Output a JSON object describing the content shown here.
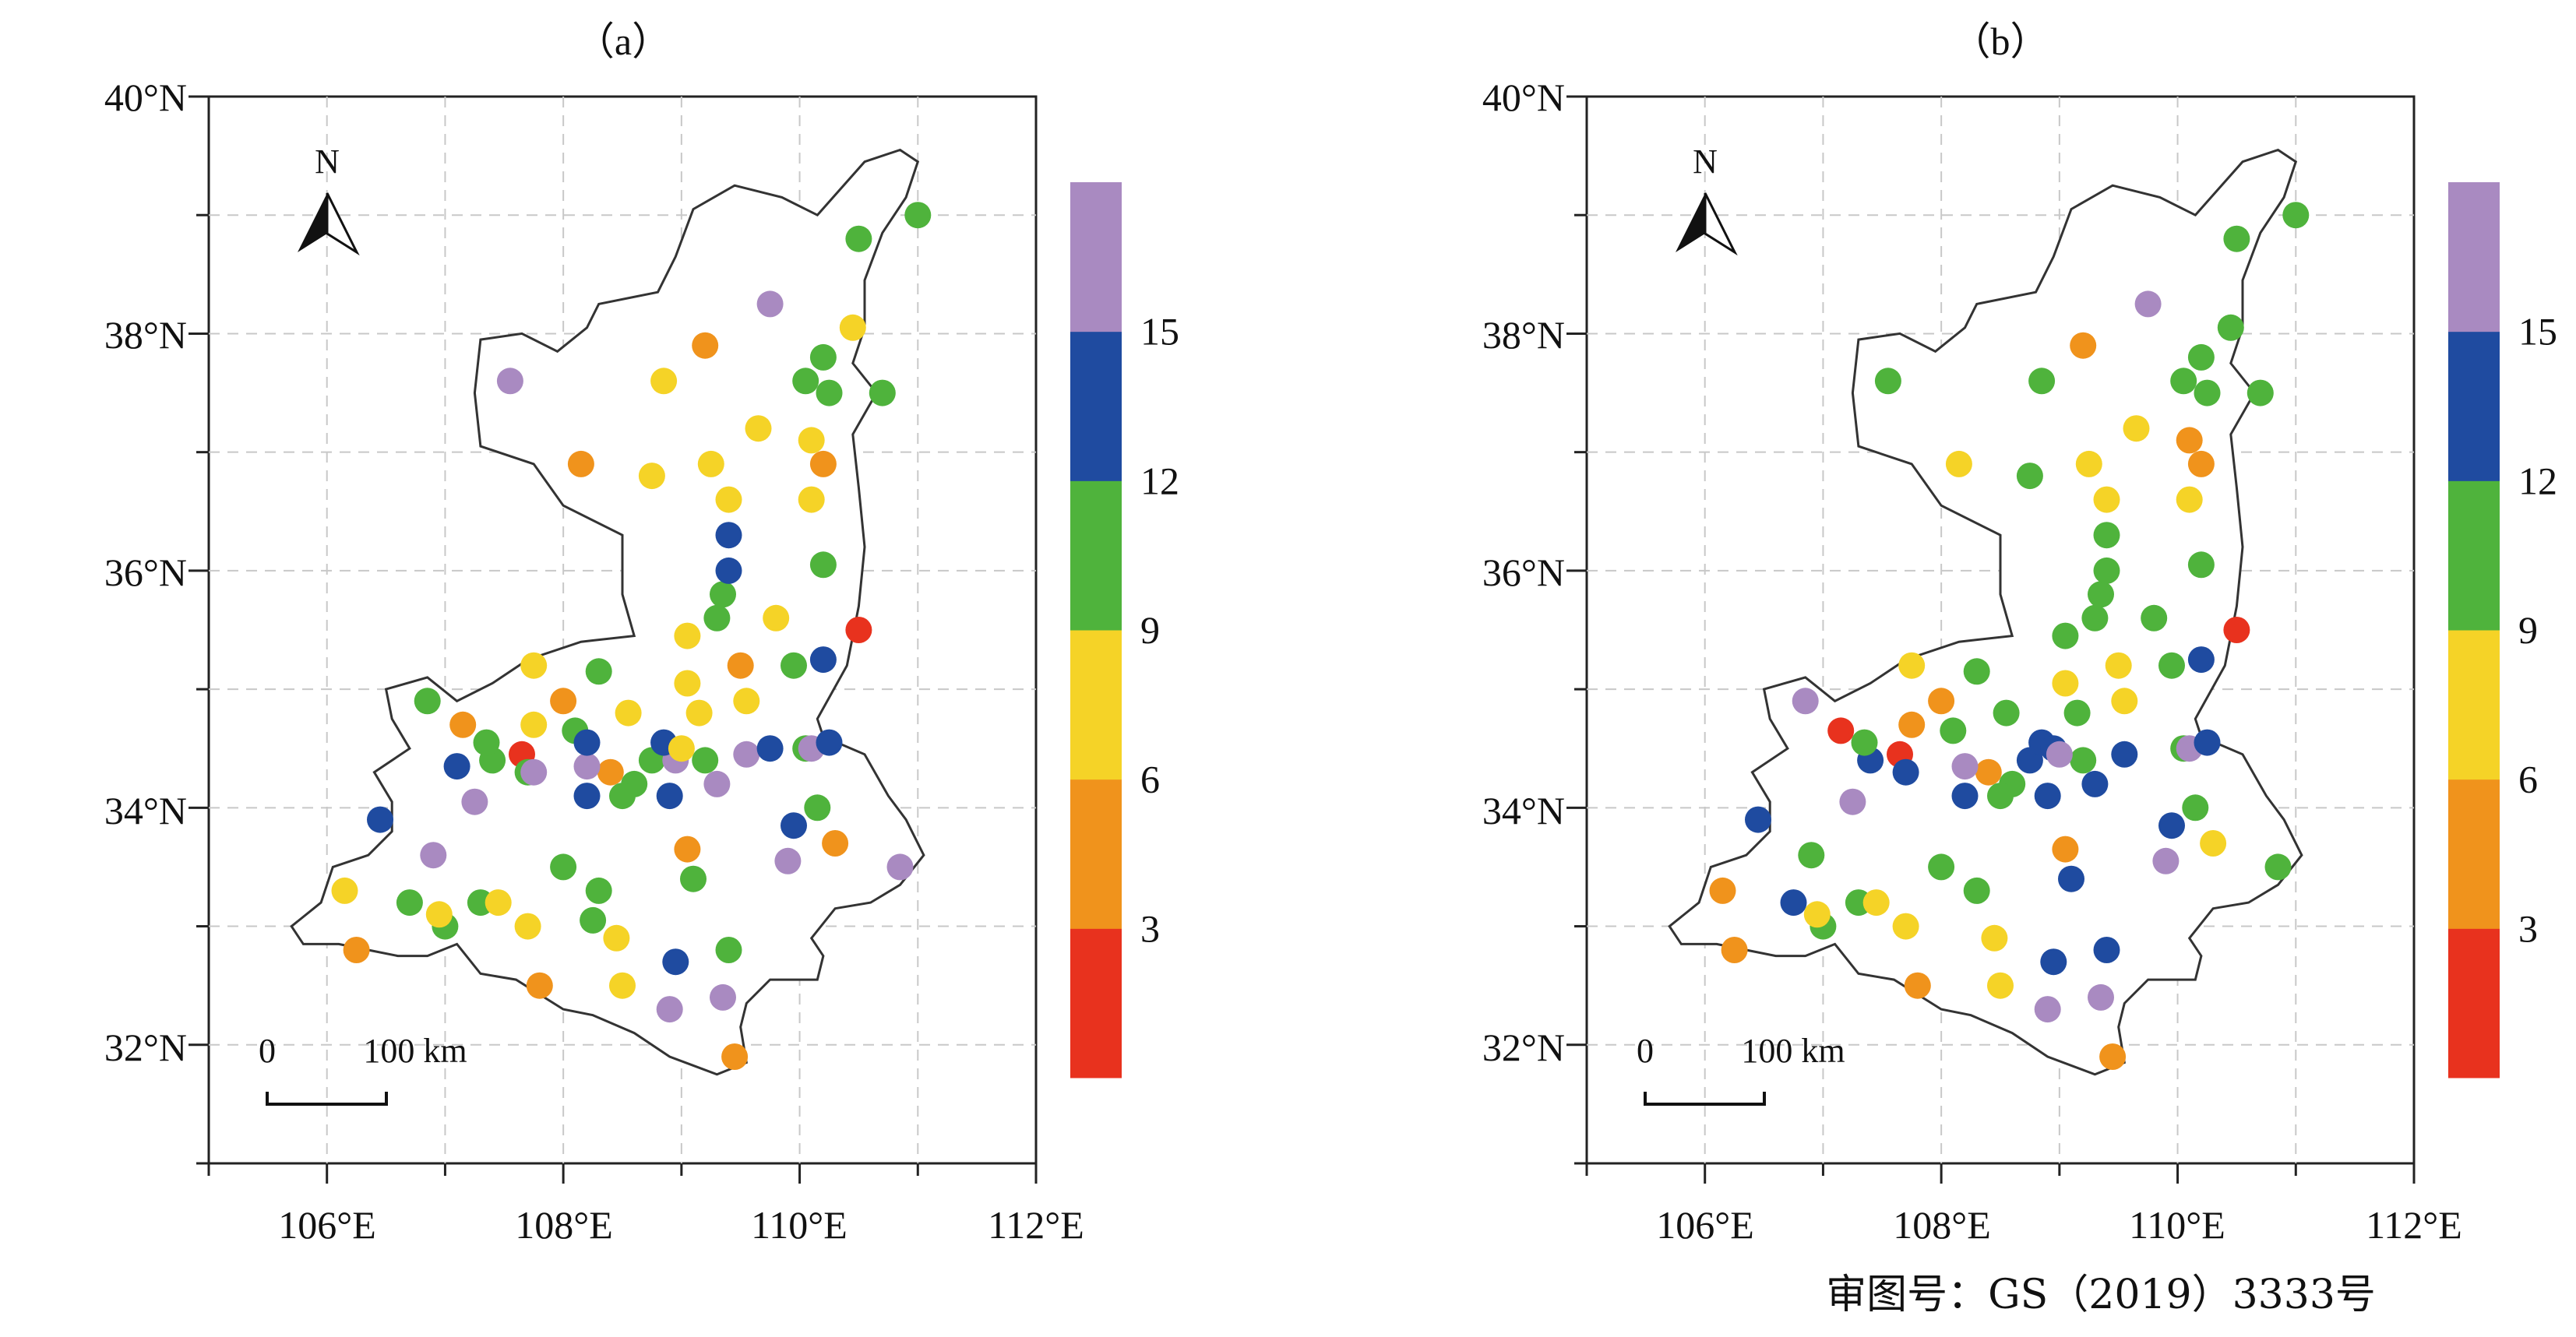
{
  "approval_number": "审图号：GS（2019）3333号",
  "north_label": "N",
  "scale_bar": {
    "zero": "0",
    "distance": "100 km"
  },
  "lat_labels": [
    "32°N",
    "34°N",
    "36°N",
    "38°N",
    "40°N"
  ],
  "lon_labels": [
    "106°E",
    "108°E",
    "110°E",
    "112°E"
  ],
  "legend": {
    "tick_labels": [
      "3",
      "6",
      "9",
      "12",
      "15"
    ],
    "colors": [
      "#e8321e",
      "#f0931c",
      "#f5d327",
      "#4fb33c",
      "#1f4ba0",
      "#a98ac1"
    ]
  },
  "map_extent": {
    "lon": [
      105,
      112
    ],
    "lat": [
      31,
      40
    ]
  },
  "panels": [
    {
      "label": "（a）",
      "stations": [
        [
          108.0,
          34.9,
          1
        ],
        [
          108.4,
          34.3,
          1
        ],
        [
          110.5,
          35.5,
          0
        ],
        [
          107.65,
          34.45,
          0
        ],
        [
          106.7,
          33.2,
          3
        ],
        [
          107.0,
          33.0,
          3
        ],
        [
          107.3,
          33.2,
          3
        ],
        [
          108.0,
          33.5,
          3
        ],
        [
          108.3,
          33.3,
          3
        ],
        [
          108.25,
          33.05,
          3
        ],
        [
          109.1,
          33.4,
          3
        ],
        [
          109.4,
          32.8,
          3
        ],
        [
          108.6,
          34.2,
          3
        ],
        [
          108.75,
          34.4,
          3
        ],
        [
          109.2,
          34.4,
          3
        ],
        [
          109.3,
          35.6,
          3
        ],
        [
          109.35,
          35.8,
          3
        ],
        [
          110.2,
          36.05,
          3
        ],
        [
          109.95,
          35.2,
          3
        ],
        [
          110.05,
          34.5,
          3
        ],
        [
          110.15,
          34.0,
          3
        ],
        [
          110.2,
          37.8,
          3
        ],
        [
          110.05,
          37.6,
          3
        ],
        [
          110.25,
          37.5,
          3
        ],
        [
          110.5,
          38.8,
          3
        ],
        [
          111.0,
          39.0,
          3
        ],
        [
          110.7,
          37.5,
          3
        ],
        [
          107.4,
          34.4,
          3
        ],
        [
          107.35,
          34.55,
          3
        ],
        [
          108.1,
          34.65,
          3
        ],
        [
          106.85,
          34.9,
          3
        ],
        [
          108.3,
          35.15,
          3
        ],
        [
          107.7,
          34.3,
          3
        ],
        [
          108.5,
          34.1,
          3
        ],
        [
          109.4,
          36.3,
          4
        ],
        [
          109.75,
          38.25,
          5
        ],
        [
          107.55,
          37.6,
          5
        ],
        [
          106.9,
          33.6,
          5
        ],
        [
          107.25,
          34.05,
          5
        ],
        [
          107.75,
          34.3,
          5
        ],
        [
          108.2,
          34.35,
          5
        ],
        [
          108.95,
          34.4,
          5
        ],
        [
          109.3,
          34.2,
          5
        ],
        [
          109.55,
          34.45,
          5
        ],
        [
          109.9,
          33.55,
          5
        ],
        [
          110.1,
          34.5,
          5
        ],
        [
          110.85,
          33.5,
          5
        ],
        [
          108.9,
          32.3,
          5
        ],
        [
          109.35,
          32.4,
          5
        ],
        [
          106.45,
          33.9,
          4
        ],
        [
          107.1,
          34.35,
          4
        ],
        [
          108.2,
          34.1,
          4
        ],
        [
          108.2,
          34.55,
          4
        ],
        [
          108.85,
          34.55,
          4
        ],
        [
          108.9,
          34.1,
          4
        ],
        [
          109.4,
          36.0,
          4
        ],
        [
          109.75,
          34.5,
          4
        ],
        [
          109.95,
          33.85,
          4
        ],
        [
          110.2,
          35.25,
          4
        ],
        [
          110.25,
          34.55,
          4
        ],
        [
          108.95,
          32.7,
          4
        ],
        [
          107.15,
          34.7,
          1
        ],
        [
          108.15,
          36.9,
          1
        ],
        [
          109.2,
          37.9,
          1
        ],
        [
          110.2,
          36.9,
          1
        ],
        [
          110.3,
          33.7,
          1
        ],
        [
          109.5,
          35.2,
          1
        ],
        [
          109.05,
          33.65,
          1
        ],
        [
          107.8,
          32.5,
          1
        ],
        [
          106.25,
          32.8,
          1
        ],
        [
          109.45,
          31.9,
          1
        ],
        [
          106.15,
          33.3,
          2
        ],
        [
          106.95,
          33.1,
          2
        ],
        [
          107.45,
          33.2,
          2
        ],
        [
          107.7,
          33.0,
          2
        ],
        [
          108.45,
          32.9,
          2
        ],
        [
          108.5,
          32.5,
          2
        ],
        [
          107.75,
          34.7,
          2
        ],
        [
          107.75,
          35.2,
          2
        ],
        [
          108.55,
          34.8,
          2
        ],
        [
          108.85,
          37.6,
          2
        ],
        [
          108.75,
          36.8,
          2
        ],
        [
          109.25,
          36.9,
          2
        ],
        [
          109.4,
          36.6,
          2
        ],
        [
          109.65,
          37.2,
          2
        ],
        [
          110.1,
          37.1,
          2
        ],
        [
          110.1,
          36.6,
          2
        ],
        [
          109.8,
          35.6,
          2
        ],
        [
          109.05,
          35.45,
          2
        ],
        [
          109.05,
          35.05,
          2
        ],
        [
          109.15,
          34.8,
          2
        ],
        [
          109.55,
          34.9,
          2
        ],
        [
          109.0,
          34.5,
          2
        ],
        [
          110.45,
          38.05,
          2
        ]
      ]
    },
    {
      "label": "（b）",
      "stations": [
        [
          108.0,
          34.9,
          1
        ],
        [
          108.4,
          34.3,
          1
        ],
        [
          110.5,
          35.5,
          0
        ],
        [
          107.65,
          34.45,
          0
        ],
        [
          107.15,
          34.65,
          0
        ],
        [
          106.75,
          33.2,
          4
        ],
        [
          107.0,
          33.0,
          3
        ],
        [
          107.3,
          33.2,
          3
        ],
        [
          108.0,
          33.5,
          3
        ],
        [
          108.3,
          33.3,
          3
        ],
        [
          109.1,
          33.4,
          4
        ],
        [
          109.4,
          32.8,
          4
        ],
        [
          108.6,
          34.2,
          3
        ],
        [
          108.75,
          34.4,
          4
        ],
        [
          109.2,
          34.4,
          3
        ],
        [
          109.3,
          35.6,
          3
        ],
        [
          109.35,
          35.8,
          3
        ],
        [
          110.2,
          36.05,
          3
        ],
        [
          109.95,
          35.2,
          3
        ],
        [
          110.05,
          34.5,
          3
        ],
        [
          110.15,
          34.0,
          3
        ],
        [
          110.2,
          37.8,
          3
        ],
        [
          110.05,
          37.6,
          3
        ],
        [
          110.25,
          37.5,
          3
        ],
        [
          110.5,
          38.8,
          3
        ],
        [
          111.0,
          39.0,
          3
        ],
        [
          110.7,
          37.5,
          3
        ],
        [
          107.4,
          34.4,
          4
        ],
        [
          107.35,
          34.55,
          3
        ],
        [
          108.1,
          34.65,
          3
        ],
        [
          106.85,
          34.9,
          5
        ],
        [
          108.3,
          35.15,
          3
        ],
        [
          107.7,
          34.3,
          4
        ],
        [
          108.5,
          34.1,
          3
        ],
        [
          109.4,
          36.3,
          3
        ],
        [
          109.75,
          38.25,
          5
        ],
        [
          107.55,
          37.6,
          3
        ],
        [
          106.9,
          33.6,
          3
        ],
        [
          107.25,
          34.05,
          5
        ],
        [
          109.3,
          34.2,
          4
        ],
        [
          109.55,
          34.45,
          4
        ],
        [
          109.9,
          33.55,
          5
        ],
        [
          110.1,
          34.5,
          5
        ],
        [
          110.85,
          33.5,
          3
        ],
        [
          108.9,
          32.3,
          5
        ],
        [
          109.35,
          32.4,
          5
        ],
        [
          106.45,
          33.9,
          4
        ],
        [
          108.2,
          34.1,
          4
        ],
        [
          108.2,
          34.35,
          5
        ],
        [
          108.85,
          34.55,
          4
        ],
        [
          108.9,
          34.1,
          4
        ],
        [
          109.4,
          36.0,
          3
        ],
        [
          109.95,
          33.85,
          4
        ],
        [
          110.2,
          35.25,
          4
        ],
        [
          110.25,
          34.55,
          4
        ],
        [
          108.95,
          32.7,
          4
        ],
        [
          108.15,
          36.9,
          2
        ],
        [
          109.2,
          37.9,
          1
        ],
        [
          110.2,
          36.9,
          1
        ],
        [
          110.1,
          37.1,
          1
        ],
        [
          110.3,
          33.7,
          2
        ],
        [
          109.5,
          35.2,
          2
        ],
        [
          109.05,
          33.65,
          1
        ],
        [
          107.8,
          32.5,
          1
        ],
        [
          106.25,
          32.8,
          1
        ],
        [
          109.45,
          31.9,
          1
        ],
        [
          106.15,
          33.3,
          1
        ],
        [
          106.95,
          33.1,
          2
        ],
        [
          107.45,
          33.2,
          2
        ],
        [
          107.7,
          33.0,
          2
        ],
        [
          108.45,
          32.9,
          2
        ],
        [
          108.5,
          32.5,
          2
        ],
        [
          107.75,
          34.7,
          1
        ],
        [
          107.75,
          35.2,
          2
        ],
        [
          108.55,
          34.8,
          3
        ],
        [
          108.85,
          37.6,
          3
        ],
        [
          108.75,
          36.8,
          3
        ],
        [
          109.25,
          36.9,
          2
        ],
        [
          109.4,
          36.6,
          2
        ],
        [
          109.65,
          37.2,
          2
        ],
        [
          110.1,
          36.6,
          2
        ],
        [
          109.8,
          35.6,
          3
        ],
        [
          109.05,
          35.45,
          3
        ],
        [
          109.05,
          35.05,
          2
        ],
        [
          109.15,
          34.8,
          3
        ],
        [
          109.55,
          34.9,
          2
        ],
        [
          108.95,
          34.5,
          4
        ],
        [
          110.45,
          38.05,
          3
        ],
        [
          109.0,
          34.45,
          5
        ]
      ]
    }
  ]
}
